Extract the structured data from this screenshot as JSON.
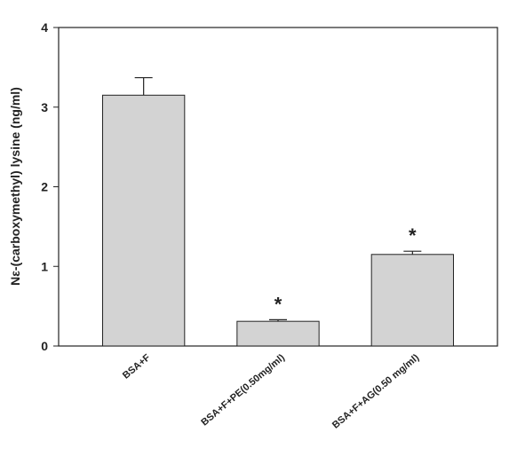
{
  "chart_data": {
    "type": "bar",
    "y_label": "Nε-(carboxymethyl) lysine (ng/ml)",
    "categories": [
      "BSA+F",
      "BSA+F+PE(0.50mg/ml)",
      "BSA+F+AG(0.50 mg/ml)"
    ],
    "values": [
      3.15,
      0.31,
      1.15
    ],
    "errors": [
      0.22,
      0.02,
      0.04
    ],
    "color": "#d3d3d3",
    "annotations": [
      {
        "text": "*",
        "category": "BSA+F+PE(0.50mg/ml)"
      },
      {
        "text": "*",
        "category": "BSA+F+AG(0.50 mg/ml)"
      }
    ],
    "ylim": [
      0,
      4
    ],
    "yticks": [
      0,
      1,
      2,
      3,
      4
    ],
    "grid": false
  }
}
